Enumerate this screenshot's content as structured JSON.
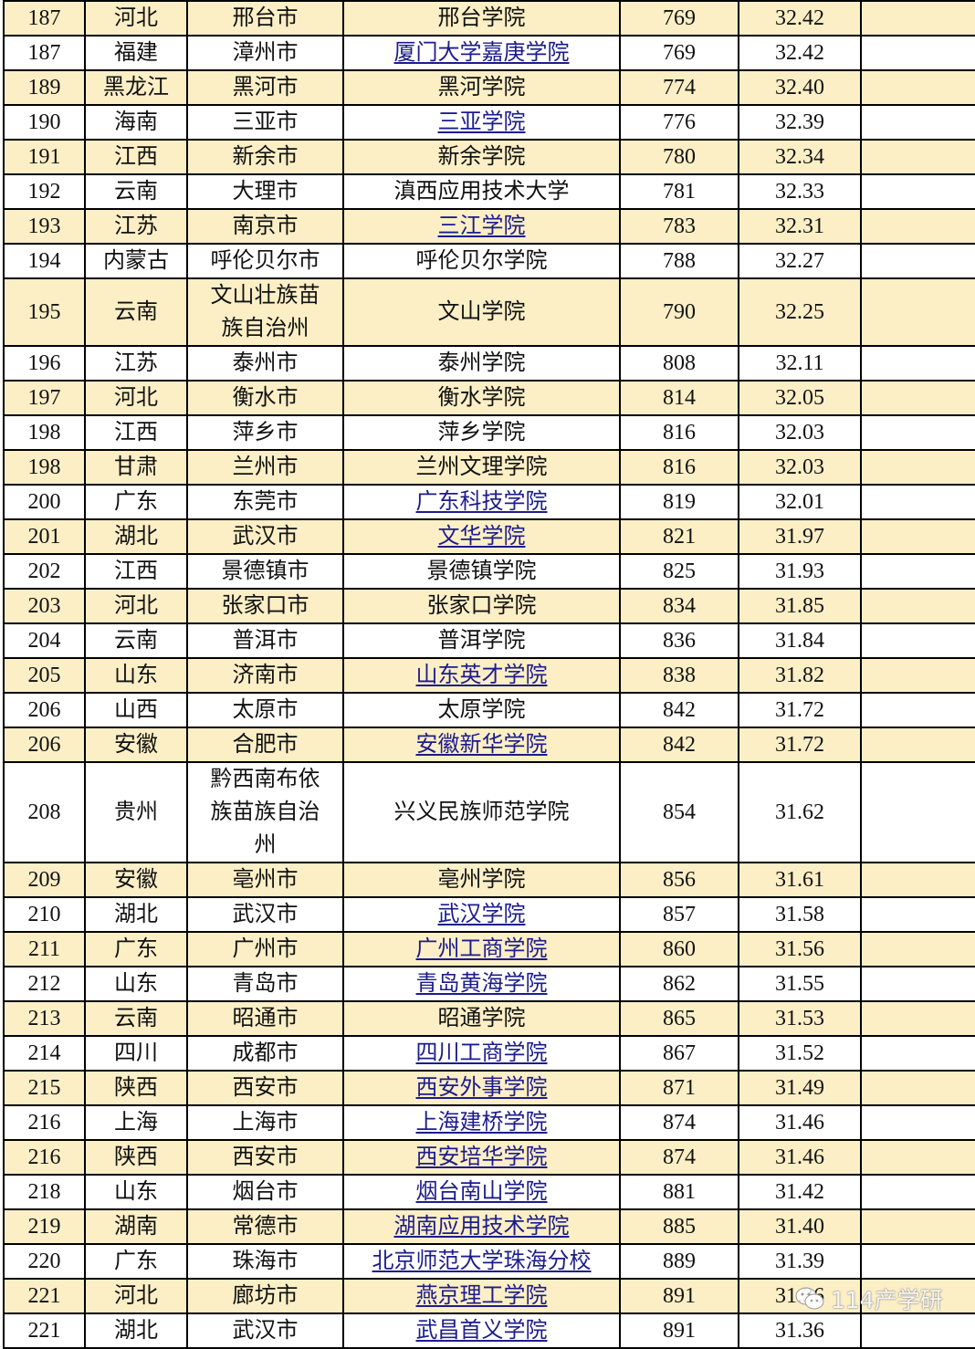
{
  "colors": {
    "highlight_row": "#fcefc6",
    "link": "#1c1c8c",
    "border": "#000000"
  },
  "rows": [
    {
      "rank": "187",
      "province": "河北",
      "city": "邢台市",
      "name": "邢台学院",
      "link": false,
      "count": "769",
      "score": "32.42"
    },
    {
      "rank": "187",
      "province": "福建",
      "city": "漳州市",
      "name": "厦门大学嘉庚学院",
      "link": true,
      "count": "769",
      "score": "32.42"
    },
    {
      "rank": "189",
      "province": "黑龙江",
      "city": "黑河市",
      "name": "黑河学院",
      "link": false,
      "count": "774",
      "score": "32.40"
    },
    {
      "rank": "190",
      "province": "海南",
      "city": "三亚市",
      "name": "三亚学院",
      "link": true,
      "count": "776",
      "score": "32.39"
    },
    {
      "rank": "191",
      "province": "江西",
      "city": "新余市",
      "name": "新余学院",
      "link": false,
      "count": "780",
      "score": "32.34"
    },
    {
      "rank": "192",
      "province": "云南",
      "city": "大理市",
      "name": "滇西应用技术大学",
      "link": false,
      "count": "781",
      "score": "32.33"
    },
    {
      "rank": "193",
      "province": "江苏",
      "city": "南京市",
      "name": "三江学院",
      "link": true,
      "count": "783",
      "score": "32.31"
    },
    {
      "rank": "194",
      "province": "内蒙古",
      "city": "呼伦贝尔市",
      "name": "呼伦贝尔学院",
      "link": false,
      "count": "788",
      "score": "32.27"
    },
    {
      "rank": "195",
      "province": "云南",
      "city": "文山壮族苗族自治州",
      "name": "文山学院",
      "link": false,
      "count": "790",
      "score": "32.25"
    },
    {
      "rank": "196",
      "province": "江苏",
      "city": "泰州市",
      "name": "泰州学院",
      "link": false,
      "count": "808",
      "score": "32.11"
    },
    {
      "rank": "197",
      "province": "河北",
      "city": "衡水市",
      "name": "衡水学院",
      "link": false,
      "count": "814",
      "score": "32.05"
    },
    {
      "rank": "198",
      "province": "江西",
      "city": "萍乡市",
      "name": "萍乡学院",
      "link": false,
      "count": "816",
      "score": "32.03"
    },
    {
      "rank": "198",
      "province": "甘肃",
      "city": "兰州市",
      "name": "兰州文理学院",
      "link": false,
      "count": "816",
      "score": "32.03"
    },
    {
      "rank": "200",
      "province": "广东",
      "city": "东莞市",
      "name": "广东科技学院",
      "link": true,
      "count": "819",
      "score": "32.01"
    },
    {
      "rank": "201",
      "province": "湖北",
      "city": "武汉市",
      "name": "文华学院",
      "link": true,
      "count": "821",
      "score": "31.97"
    },
    {
      "rank": "202",
      "province": "江西",
      "city": "景德镇市",
      "name": "景德镇学院",
      "link": false,
      "count": "825",
      "score": "31.93"
    },
    {
      "rank": "203",
      "province": "河北",
      "city": "张家口市",
      "name": "张家口学院",
      "link": false,
      "count": "834",
      "score": "31.85"
    },
    {
      "rank": "204",
      "province": "云南",
      "city": "普洱市",
      "name": "普洱学院",
      "link": false,
      "count": "836",
      "score": "31.84"
    },
    {
      "rank": "205",
      "province": "山东",
      "city": "济南市",
      "name": "山东英才学院",
      "link": true,
      "count": "838",
      "score": "31.82"
    },
    {
      "rank": "206",
      "province": "山西",
      "city": "太原市",
      "name": "太原学院",
      "link": false,
      "count": "842",
      "score": "31.72"
    },
    {
      "rank": "206",
      "province": "安徽",
      "city": "合肥市",
      "name": "安徽新华学院",
      "link": true,
      "count": "842",
      "score": "31.72"
    },
    {
      "rank": "208",
      "province": "贵州",
      "city": "黔西南布依族苗族自治州",
      "name": "兴义民族师范学院",
      "link": false,
      "count": "854",
      "score": "31.62"
    },
    {
      "rank": "209",
      "province": "安徽",
      "city": "亳州市",
      "name": "亳州学院",
      "link": false,
      "count": "856",
      "score": "31.61"
    },
    {
      "rank": "210",
      "province": "湖北",
      "city": "武汉市",
      "name": "武汉学院",
      "link": true,
      "count": "857",
      "score": "31.58"
    },
    {
      "rank": "211",
      "province": "广东",
      "city": "广州市",
      "name": "广州工商学院",
      "link": true,
      "count": "860",
      "score": "31.56"
    },
    {
      "rank": "212",
      "province": "山东",
      "city": "青岛市",
      "name": "青岛黄海学院",
      "link": true,
      "count": "862",
      "score": "31.55"
    },
    {
      "rank": "213",
      "province": "云南",
      "city": "昭通市",
      "name": "昭通学院",
      "link": false,
      "count": "865",
      "score": "31.53"
    },
    {
      "rank": "214",
      "province": "四川",
      "city": "成都市",
      "name": "四川工商学院",
      "link": true,
      "count": "867",
      "score": "31.52"
    },
    {
      "rank": "215",
      "province": "陕西",
      "city": "西安市",
      "name": "西安外事学院",
      "link": true,
      "count": "871",
      "score": "31.49"
    },
    {
      "rank": "216",
      "province": "上海",
      "city": "上海市",
      "name": "上海建桥学院",
      "link": true,
      "count": "874",
      "score": "31.46"
    },
    {
      "rank": "216",
      "province": "陕西",
      "city": "西安市",
      "name": "西安培华学院",
      "link": true,
      "count": "874",
      "score": "31.46"
    },
    {
      "rank": "218",
      "province": "山东",
      "city": "烟台市",
      "name": "烟台南山学院",
      "link": true,
      "count": "881",
      "score": "31.42"
    },
    {
      "rank": "219",
      "province": "湖南",
      "city": "常德市",
      "name": "湖南应用技术学院",
      "link": true,
      "count": "885",
      "score": "31.40"
    },
    {
      "rank": "220",
      "province": "广东",
      "city": "珠海市",
      "name": "北京师范大学珠海分校",
      "link": true,
      "count": "889",
      "score": "31.39"
    },
    {
      "rank": "221",
      "province": "河北",
      "city": "廊坊市",
      "name": "燕京理工学院",
      "link": true,
      "count": "891",
      "score": "31.36"
    },
    {
      "rank": "221",
      "province": "湖北",
      "city": "武汉市",
      "name": "武昌首义学院",
      "link": true,
      "count": "891",
      "score": "31.36"
    }
  ],
  "watermark": {
    "text": "114产学研",
    "icon": "wechat-icon"
  }
}
